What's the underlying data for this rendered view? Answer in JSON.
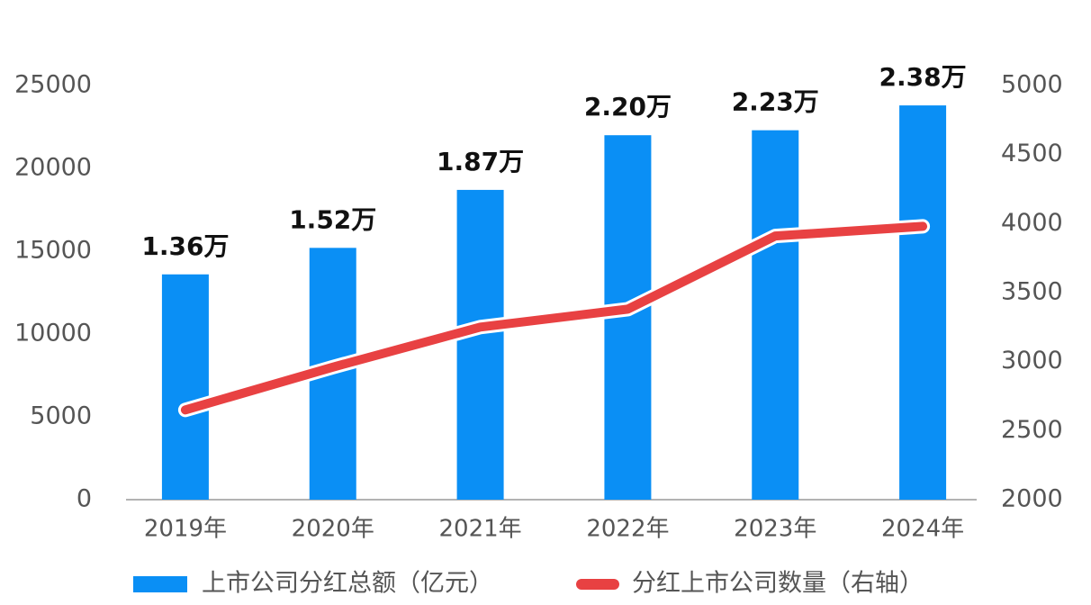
{
  "chart_data": {
    "type": "bar",
    "categories": [
      "2019年",
      "2020年",
      "2021年",
      "2022年",
      "2023年",
      "2024年"
    ],
    "series": [
      {
        "name": "上市公司分红总额（亿元）",
        "type": "bar",
        "color": "#0a8ff5",
        "values": [
          13600,
          15200,
          18700,
          22000,
          22300,
          23800
        ],
        "value_labels": [
          "1.36万",
          "1.52万",
          "1.87万",
          "2.20万",
          "2.23万",
          "2.38万"
        ]
      },
      {
        "name": "分红上市公司数量（右轴）",
        "type": "line",
        "color": "#e84142",
        "axis": "y2",
        "values": [
          2650,
          2960,
          3250,
          3380,
          3910,
          3980
        ]
      }
    ],
    "ylim": [
      0,
      25000
    ],
    "yticks": [
      0,
      5000,
      10000,
      15000,
      20000,
      25000
    ],
    "y2lim": [
      2000,
      5000
    ],
    "y2ticks": [
      2000,
      2500,
      3000,
      3500,
      4000,
      4500,
      5000
    ],
    "grid": false
  }
}
